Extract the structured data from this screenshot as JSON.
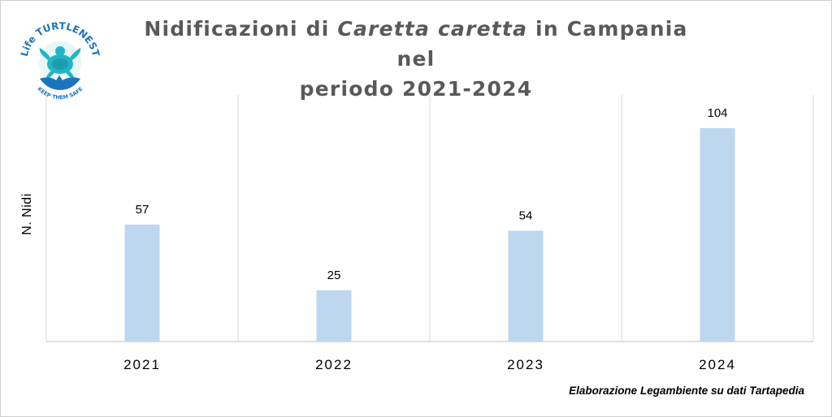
{
  "title": {
    "before": "Nidificazioni di ",
    "species": "Caretta caretta",
    "after": " in Campania nel",
    "line2": "periodo 2021-2024"
  },
  "logo": {
    "text_top": "Life TURTLENEST",
    "text_bottom": "KEEP THEM SAFE",
    "colors": {
      "blue": "#1b75bc",
      "teal": "#23b4c6"
    }
  },
  "chart_data": {
    "type": "bar",
    "categories": [
      "2021",
      "2022",
      "2023",
      "2024"
    ],
    "values": [
      57,
      25,
      54,
      104
    ],
    "data_labels": [
      "57",
      "25",
      "54",
      "104"
    ],
    "ylabel": "N. Nidi",
    "xlabel": "",
    "ylim": [
      0,
      120
    ],
    "grid": "vertical separators",
    "bar_color": "#bdd7ee"
  },
  "source_note": "Elaborazione Legambiente su dati Tartapedia"
}
